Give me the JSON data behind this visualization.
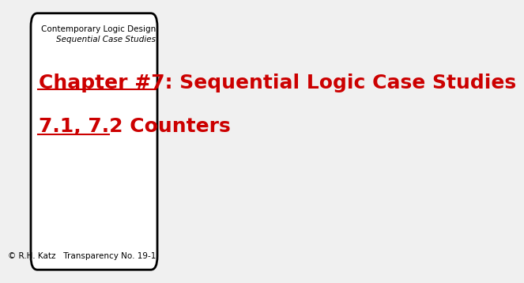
{
  "bg_color": "#f0f0f0",
  "slide_bg": "#ffffff",
  "border_color": "#000000",
  "border_linewidth": 2.0,
  "title_line1": "Chapter #7: Sequential Logic Case Studies",
  "title_line2": "7.1, 7.2 Counters",
  "title_color": "#cc0000",
  "title_fontsize": 18,
  "title_fontweight": "bold",
  "header_line1": "Contemporary Logic Design",
  "header_line2": "Sequential Case Studies",
  "header_color": "#000000",
  "header_fontsize": 7.5,
  "footer_text": "© R.H. Katz   Transparency No. 19-1",
  "footer_fontsize": 7.5,
  "footer_color": "#000000"
}
